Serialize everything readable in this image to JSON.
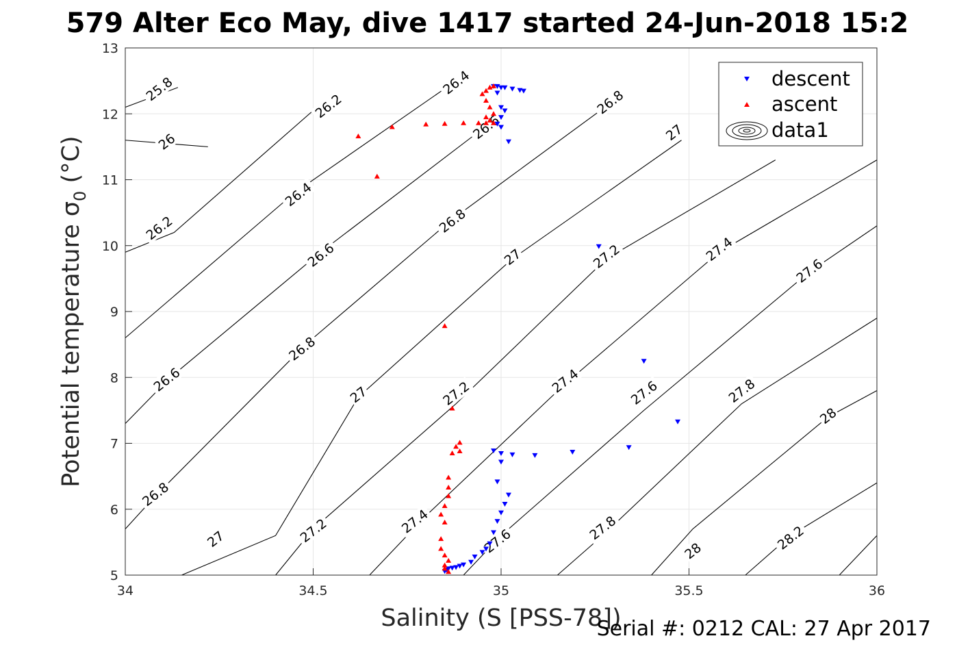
{
  "chart_data": {
    "type": "scatter",
    "title": "579 Alter Eco May, dive 1417 started 24-Jun-2018 15:2",
    "xlabel": "Salinity (S [PSS-78])",
    "ylabel": "Potential temperature σ",
    "ylabel_sub": "0",
    "ylabel_unit": " (°C)",
    "footer": "Serial #: 0212  CAL: 27 Apr 2017",
    "xlim": [
      34,
      36
    ],
    "ylim": [
      5,
      13
    ],
    "xticks": [
      "34",
      "34.5",
      "35",
      "35.5",
      "36"
    ],
    "yticks": [
      "5",
      "6",
      "7",
      "8",
      "9",
      "10",
      "11",
      "12",
      "13"
    ],
    "grid": true,
    "legend_position": "top-right",
    "legend": [
      "descent",
      "ascent",
      "data1"
    ],
    "colors": {
      "descent": "#0000ff",
      "ascent": "#ff0000",
      "contour": "#000000"
    },
    "series": [
      {
        "name": "descent",
        "marker": "triangle-down",
        "x": [
          34.98,
          34.99,
          35.0,
          35.01,
          35.03,
          35.05,
          35.06,
          34.99,
          35.0,
          35.01,
          35.0,
          34.99,
          35.0,
          35.02,
          35.26,
          35.38,
          35.47,
          35.34,
          35.19,
          35.09,
          35.03,
          35.0,
          34.98,
          35.0,
          34.99,
          35.02,
          35.01,
          35.0,
          34.99,
          34.98,
          34.97,
          34.96,
          34.95,
          34.93,
          34.92,
          34.9,
          34.89,
          34.88,
          34.87,
          34.86,
          34.855,
          34.85
        ],
        "y": [
          12.42,
          12.42,
          12.4,
          12.4,
          12.38,
          12.36,
          12.35,
          12.32,
          12.1,
          12.05,
          11.95,
          11.85,
          11.8,
          11.58,
          9.99,
          8.25,
          7.33,
          6.94,
          6.87,
          6.82,
          6.83,
          6.85,
          6.89,
          6.72,
          6.42,
          6.22,
          6.08,
          5.95,
          5.82,
          5.65,
          5.48,
          5.4,
          5.35,
          5.28,
          5.2,
          5.16,
          5.14,
          5.12,
          5.11,
          5.1,
          5.08,
          5.06
        ]
      },
      {
        "name": "ascent",
        "marker": "triangle-up",
        "x": [
          34.98,
          34.97,
          34.96,
          34.95,
          34.96,
          34.97,
          34.98,
          34.96,
          34.97,
          34.98,
          34.96,
          34.94,
          34.9,
          34.85,
          34.8,
          34.71,
          34.62,
          34.67,
          34.85,
          34.87,
          34.89,
          34.89,
          34.88,
          34.87,
          34.86,
          34.86,
          34.86,
          34.85,
          34.84,
          34.85,
          34.84,
          34.84,
          34.85,
          34.86,
          34.85,
          34.85,
          34.86
        ],
        "y": [
          12.42,
          12.4,
          12.35,
          12.3,
          12.2,
          12.1,
          12.0,
          11.95,
          11.9,
          11.86,
          11.86,
          11.86,
          11.86,
          11.85,
          11.84,
          11.8,
          11.66,
          11.05,
          8.78,
          7.53,
          7.01,
          6.88,
          6.95,
          6.85,
          6.48,
          6.33,
          6.2,
          6.05,
          5.92,
          5.8,
          5.55,
          5.4,
          5.3,
          5.22,
          5.15,
          5.1,
          5.05
        ]
      }
    ],
    "contours": [
      {
        "label": "25.8",
        "x": [
          34.0,
          34.14
        ],
        "y": [
          12.1,
          12.4
        ]
      },
      {
        "label": "26",
        "x": [
          34.0,
          34.22
        ],
        "y": [
          11.6,
          11.5
        ]
      },
      {
        "label": "26.2",
        "x": [
          34.0,
          34.13,
          34.55
        ],
        "y": [
          9.9,
          10.2,
          12.3
        ]
      },
      {
        "label": "26.4",
        "x": [
          34.0,
          34.45,
          34.88
        ],
        "y": [
          8.6,
          10.8,
          12.5
        ]
      },
      {
        "label": "26.6",
        "x": [
          34.0,
          34.12,
          34.52,
          34.98
        ],
        "y": [
          7.3,
          8.0,
          9.9,
          11.9
        ]
      },
      {
        "label": "26.8",
        "x": [
          34.0,
          34.08,
          34.48,
          34.87,
          35.3
        ],
        "y": [
          5.7,
          6.2,
          8.5,
          10.4,
          12.2
        ]
      },
      {
        "label": "27",
        "x": [
          34.15,
          34.4,
          34.62,
          35.03,
          35.48
        ],
        "y": [
          5.0,
          5.6,
          7.7,
          9.8,
          11.6
        ]
      },
      {
        "label": "27.2",
        "x": [
          34.4,
          34.5,
          34.88,
          35.28,
          35.73
        ],
        "y": [
          5.0,
          5.7,
          7.6,
          9.8,
          11.3
        ]
      },
      {
        "label": "27.4",
        "x": [
          34.65,
          34.8,
          35.17,
          35.58,
          36.0
        ],
        "y": [
          5.0,
          5.9,
          7.9,
          9.9,
          11.3
        ]
      },
      {
        "label": "27.6",
        "x": [
          34.9,
          35.0,
          35.38,
          35.82,
          36.0
        ],
        "y": [
          5.0,
          5.6,
          7.5,
          9.6,
          10.3
        ]
      },
      {
        "label": "27.8",
        "x": [
          35.15,
          35.27,
          35.64,
          36.0
        ],
        "y": [
          5.0,
          5.6,
          7.6,
          8.9
        ]
      },
      {
        "label": "28",
        "x": [
          35.4,
          35.51,
          35.87,
          36.0
        ],
        "y": [
          5.0,
          5.7,
          7.4,
          7.8
        ]
      },
      {
        "label": "28.2",
        "x": [
          35.65,
          35.77,
          36.0
        ],
        "y": [
          5.0,
          5.6,
          6.4
        ]
      },
      {
        "label": "",
        "x": [
          35.9,
          36.0
        ],
        "y": [
          5.0,
          5.6
        ]
      }
    ],
    "contour_label_positions": [
      {
        "label": "25.8",
        "x": 34.09,
        "y": 12.38
      },
      {
        "label": "26.2",
        "x": 34.54,
        "y": 12.12
      },
      {
        "label": "26.4",
        "x": 34.88,
        "y": 12.48
      },
      {
        "label": "26",
        "x": 34.11,
        "y": 11.58
      },
      {
        "label": "26.4",
        "x": 34.46,
        "y": 10.78
      },
      {
        "label": "26.2",
        "x": 34.09,
        "y": 10.27
      },
      {
        "label": "26.6",
        "x": 34.52,
        "y": 9.86
      },
      {
        "label": "26.8",
        "x": 34.87,
        "y": 10.38
      },
      {
        "label": "26.8",
        "x": 35.29,
        "y": 12.18
      },
      {
        "label": "27",
        "x": 35.46,
        "y": 11.72
      },
      {
        "label": "27",
        "x": 35.03,
        "y": 9.83
      },
      {
        "label": "27.2",
        "x": 35.28,
        "y": 9.84
      },
      {
        "label": "27.4",
        "x": 35.58,
        "y": 9.95
      },
      {
        "label": "27.6",
        "x": 35.82,
        "y": 9.62
      },
      {
        "label": "26.6",
        "x": 34.11,
        "y": 7.97
      },
      {
        "label": "26.8",
        "x": 34.47,
        "y": 8.44
      },
      {
        "label": "27",
        "x": 34.62,
        "y": 7.74
      },
      {
        "label": "27.2",
        "x": 34.88,
        "y": 7.76
      },
      {
        "label": "27.4",
        "x": 35.17,
        "y": 7.95
      },
      {
        "label": "27.6",
        "x": 35.38,
        "y": 7.77
      },
      {
        "label": "27.8",
        "x": 35.64,
        "y": 7.8
      },
      {
        "label": "28",
        "x": 35.87,
        "y": 7.42
      },
      {
        "label": "26.8",
        "x": 34.08,
        "y": 6.23
      },
      {
        "label": "27",
        "x": 34.24,
        "y": 5.55
      },
      {
        "label": "27.2",
        "x": 34.5,
        "y": 5.68
      },
      {
        "label": "27.4",
        "x": 34.77,
        "y": 5.82
      },
      {
        "label": "27.6",
        "x": 34.99,
        "y": 5.52
      },
      {
        "label": "27.8",
        "x": 35.27,
        "y": 5.72
      },
      {
        "label": "28",
        "x": 35.51,
        "y": 5.37
      },
      {
        "label": "28.2",
        "x": 35.77,
        "y": 5.57
      },
      {
        "label": "26.6",
        "x": 34.96,
        "y": 11.8
      }
    ]
  }
}
